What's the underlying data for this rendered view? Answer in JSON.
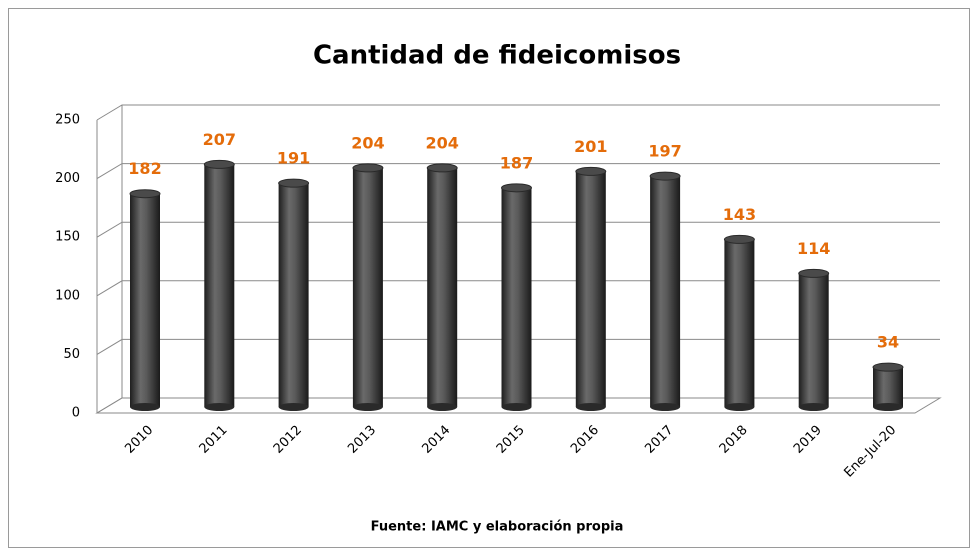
{
  "chart_data": {
    "type": "bar",
    "title": "Cantidad de fideicomisos",
    "categories": [
      "2010",
      "2011",
      "2012",
      "2013",
      "2014",
      "2015",
      "2016",
      "2017",
      "2018",
      "2019",
      "Ene-Jul-20"
    ],
    "values": [
      182,
      207,
      191,
      204,
      204,
      187,
      201,
      197,
      143,
      114,
      34
    ],
    "color": "#3c3c3c",
    "label_color": "#e46c0a",
    "ylim": [
      0,
      250
    ],
    "yticks": [
      0,
      50,
      100,
      150,
      200,
      250
    ],
    "grid": true,
    "source": "Fuente: IAMC y elaboración propia"
  }
}
